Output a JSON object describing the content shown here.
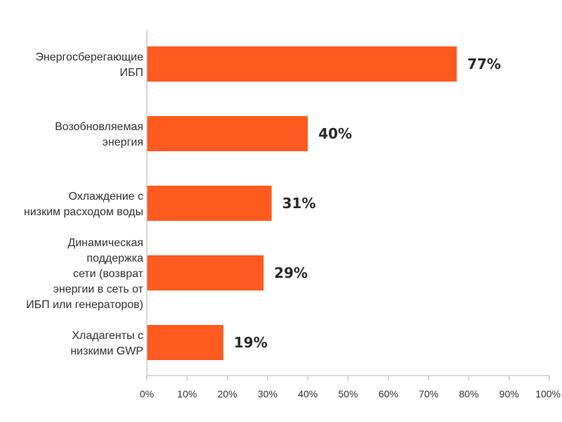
{
  "chart_data": {
    "type": "bar",
    "orientation": "horizontal",
    "categories": [
      [
        "Энергосберегающие",
        "ИБП"
      ],
      [
        "Возобновляемая",
        "энергия"
      ],
      [
        "Охлаждение с",
        "низким расходом воды"
      ],
      [
        "Динамическая",
        "поддержка",
        "сети (возврат",
        "энергии в сеть от",
        "ИБП или генераторов)"
      ],
      [
        "Хладагенты с",
        "низкими GWP"
      ]
    ],
    "values": [
      77,
      40,
      31,
      29,
      19
    ],
    "value_labels": [
      "77%",
      "40%",
      "31%",
      "29%",
      "19%"
    ],
    "xlim": [
      0,
      100
    ],
    "x_ticks": [
      0,
      10,
      20,
      30,
      40,
      50,
      60,
      70,
      80,
      90,
      100
    ],
    "x_tick_labels": [
      "0%",
      "10%",
      "20%",
      "30%",
      "40%",
      "50%",
      "60%",
      "70%",
      "80%",
      "90%",
      "100%"
    ],
    "title": "",
    "xlabel": "",
    "ylabel": "",
    "grid": false,
    "bar_color": "#ff5a1f",
    "axis_color": "#cccccc"
  }
}
